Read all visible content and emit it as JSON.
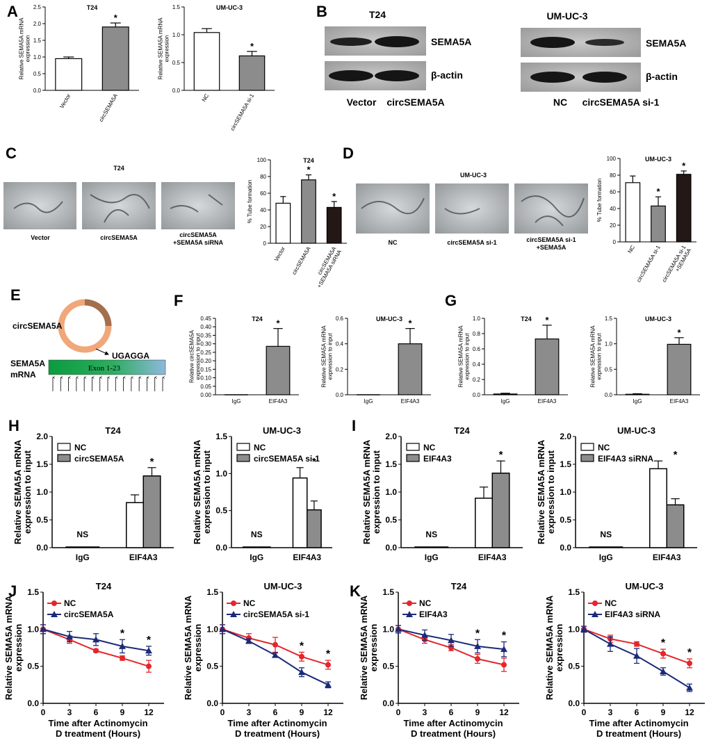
{
  "panels": [
    "A",
    "B",
    "C",
    "D",
    "E",
    "F",
    "G",
    "H",
    "I",
    "J",
    "K"
  ],
  "colors": {
    "gray": "#8c8c8c",
    "black": "#231815",
    "white": "#ffffff",
    "red": "#e4262b",
    "blue": "#1b2a78",
    "green_start": "#0b9b3f",
    "green_end": "#8fb8dd"
  },
  "blots": {
    "T24": {
      "title": "T24",
      "band1": "SEMA5A",
      "band2": "β-actin",
      "lanes": [
        "Vector",
        "circSEMA5A"
      ]
    },
    "UMUC3": {
      "title": "UM-UC-3",
      "band1": "SEMA5A",
      "band2": "β-actin",
      "lanes": [
        "NC",
        "circSEMA5A si-1"
      ]
    }
  },
  "micro_C": {
    "title": "T24",
    "labels": [
      "Vector",
      "circSEMA5A",
      "circSEMA5A\n+SEMA5A siRNA"
    ]
  },
  "micro_D": {
    "title": "UM-UC-3",
    "labels": [
      "NC",
      "circSEMA5A si-1",
      "circSEMA5A si-1\n+SEMA5A"
    ]
  },
  "schematic": {
    "circ_label": "circSEMA5A",
    "motif": "UGAGGA",
    "mrna_label": "SEMA5A\nmRNA",
    "exon_label": "Exon 1-23",
    "arrows": 15
  },
  "chart_data": [
    {
      "id": "A1",
      "type": "bar",
      "title": "T24",
      "ylabel": "Relative SEMA5A mRNA\nexpression",
      "categories": [
        "Vector",
        "circSEMA5A"
      ],
      "values": [
        0.95,
        1.9
      ],
      "errors": [
        0.05,
        0.12
      ],
      "fills": [
        "white",
        "gray"
      ],
      "ylim": [
        0,
        2.5
      ],
      "yticks": [
        0,
        0.5,
        1.0,
        1.5,
        2.0,
        2.5
      ],
      "tick_labels": [
        "0.0",
        "0.5",
        "1.0",
        "1.5",
        "2.0",
        "2.5"
      ],
      "stars": [
        "",
        "*"
      ],
      "rotate": true
    },
    {
      "id": "A2",
      "type": "bar",
      "title": "UM-UC-3",
      "ylabel": "Relative SEMA5A mRNA\nexpression",
      "categories": [
        "NC",
        "circSEMA5A si-1"
      ],
      "values": [
        1.04,
        0.62
      ],
      "errors": [
        0.07,
        0.08
      ],
      "fills": [
        "white",
        "gray"
      ],
      "ylim": [
        0,
        1.5
      ],
      "yticks": [
        0,
        0.5,
        1.0,
        1.5
      ],
      "tick_labels": [
        "0.0",
        "0.5",
        "1.0",
        "1.5"
      ],
      "stars": [
        "",
        "*"
      ],
      "rotate": true
    },
    {
      "id": "C",
      "type": "bar",
      "title": "T24",
      "ylabel": "% Tube formation",
      "categories": [
        "Vector",
        "circSEMA5A",
        "circSEMA5A\n+SEMA5A siRNA"
      ],
      "values": [
        48,
        76,
        43
      ],
      "errors": [
        8,
        6,
        7
      ],
      "fills": [
        "white",
        "gray",
        "black"
      ],
      "ylim": [
        0,
        100
      ],
      "yticks": [
        0,
        20,
        40,
        60,
        80,
        100
      ],
      "tick_labels": [
        "0",
        "20",
        "40",
        "60",
        "80",
        "100"
      ],
      "stars": [
        "",
        "*",
        "*"
      ],
      "rotate": true
    },
    {
      "id": "D",
      "type": "bar",
      "title": "UM-UC-3",
      "ylabel": "% Tube formation",
      "categories": [
        "NC",
        "circSEMA5A si-1",
        "circSEMA5A si-1\n+SEMA5A"
      ],
      "values": [
        71,
        43,
        81
      ],
      "errors": [
        8,
        11,
        4
      ],
      "fills": [
        "white",
        "gray",
        "black"
      ],
      "ylim": [
        0,
        100
      ],
      "yticks": [
        0,
        20,
        40,
        60,
        80,
        100
      ],
      "tick_labels": [
        "0",
        "20",
        "40",
        "60",
        "80",
        "100"
      ],
      "stars": [
        "",
        "*",
        "*"
      ],
      "rotate": true
    },
    {
      "id": "F1",
      "type": "bar",
      "title": "T24",
      "ylabel": "Relative circSEMA5A\nexpression to input",
      "categories": [
        "IgG",
        "EIF4A3"
      ],
      "values": [
        0,
        0.285
      ],
      "errors": [
        0,
        0.105
      ],
      "fills": [
        "gray",
        "gray"
      ],
      "ylim": [
        0,
        0.45
      ],
      "yticks": [
        0,
        0.05,
        0.1,
        0.15,
        0.2,
        0.25,
        0.3,
        0.35,
        0.4,
        0.45
      ],
      "tick_labels": [
        "0.00",
        "0.05",
        "0.10",
        "0.15",
        "0.20",
        "0.25",
        "0.30",
        "0.35",
        "0.40",
        "0.45"
      ],
      "stars": [
        "",
        "*"
      ],
      "rotate": false
    },
    {
      "id": "F2",
      "type": "bar",
      "title": "UM-UC-3",
      "ylabel": "Relative SEMA5A mRNA\nexpression to input",
      "categories": [
        "IgG",
        "EIF4A3"
      ],
      "values": [
        0,
        0.4
      ],
      "errors": [
        0,
        0.12
      ],
      "fills": [
        "gray",
        "gray"
      ],
      "ylim": [
        0,
        0.6
      ],
      "yticks": [
        0,
        0.2,
        0.4,
        0.6
      ],
      "tick_labels": [
        "0.0",
        "0.2",
        "0.4",
        "0.6"
      ],
      "stars": [
        "",
        "*"
      ],
      "rotate": false
    },
    {
      "id": "G1",
      "type": "bar",
      "title": "T24",
      "ylabel": "Relative SEMA5A mRNA\nexpression to input",
      "categories": [
        "IgG",
        "EIF4A3"
      ],
      "values": [
        0.01,
        0.73
      ],
      "errors": [
        0.01,
        0.18
      ],
      "fills": [
        "gray",
        "gray"
      ],
      "ylim": [
        0,
        1.0
      ],
      "yticks": [
        0,
        0.2,
        0.4,
        0.6,
        0.8,
        1.0
      ],
      "tick_labels": [
        "0.0",
        "0.2",
        "0.4",
        "0.6",
        "0.8",
        "1.0"
      ],
      "stars": [
        "",
        "*"
      ],
      "rotate": false
    },
    {
      "id": "G2",
      "type": "bar",
      "title": "UM-UC-3",
      "ylabel": "Relative SEMA5A mRNA\nexpression to input",
      "categories": [
        "IgG",
        "EIF4A3"
      ],
      "values": [
        0.01,
        0.99
      ],
      "errors": [
        0.01,
        0.13
      ],
      "fills": [
        "gray",
        "gray"
      ],
      "ylim": [
        0,
        1.5
      ],
      "yticks": [
        0,
        0.5,
        1.0,
        1.5
      ],
      "tick_labels": [
        "0.0",
        "0.5",
        "1.0",
        "1.5"
      ],
      "stars": [
        "",
        "*"
      ],
      "rotate": false
    },
    {
      "id": "H1",
      "type": "grouped_bar",
      "title": "T24",
      "ylabel": "Relative SEMA5A mRNA\nexpression to input",
      "categories": [
        "IgG",
        "EIF4A3"
      ],
      "series": [
        {
          "name": "NC",
          "fill": "white",
          "values": [
            0.01,
            0.81
          ],
          "errors": [
            0,
            0.14
          ]
        },
        {
          "name": "circSEMA5A",
          "fill": "gray",
          "values": [
            0.01,
            1.29
          ],
          "errors": [
            0,
            0.15
          ]
        }
      ],
      "ylim": [
        0,
        2.0
      ],
      "yticks": [
        0,
        0.5,
        1.0,
        1.5,
        2.0
      ],
      "tick_labels": [
        "0.0",
        "0.5",
        "1.0",
        "1.5",
        "2.0"
      ],
      "annot": [
        "NS",
        "*"
      ]
    },
    {
      "id": "H2",
      "type": "grouped_bar",
      "title": "UM-UC-3",
      "ylabel": "Relative SEMA5A mRNA\nexpression to input",
      "categories": [
        "IgG",
        "EIF4A3"
      ],
      "series": [
        {
          "name": "NC",
          "fill": "white",
          "values": [
            0.01,
            0.94
          ],
          "errors": [
            0,
            0.14
          ]
        },
        {
          "name": "circSEMA5A si-1",
          "fill": "gray",
          "values": [
            0.01,
            0.51
          ],
          "errors": [
            0,
            0.12
          ]
        }
      ],
      "ylim": [
        0,
        1.5
      ],
      "yticks": [
        0,
        0.5,
        1.0,
        1.5
      ],
      "tick_labels": [
        "0.0",
        "0.5",
        "1.0",
        "1.5"
      ],
      "annot": [
        "NS",
        "*"
      ]
    },
    {
      "id": "I1",
      "type": "grouped_bar",
      "title": "T24",
      "ylabel": "Relative SEMA5A mRNA\nexpression to input",
      "categories": [
        "IgG",
        "EIF4A3"
      ],
      "series": [
        {
          "name": "NC",
          "fill": "white",
          "values": [
            0.01,
            0.89
          ],
          "errors": [
            0,
            0.2
          ]
        },
        {
          "name": "EIF4A3",
          "fill": "gray",
          "values": [
            0.01,
            1.34
          ],
          "errors": [
            0,
            0.22
          ]
        }
      ],
      "ylim": [
        0,
        2.0
      ],
      "yticks": [
        0,
        0.5,
        1.0,
        1.5,
        2.0
      ],
      "tick_labels": [
        "0.0",
        "0.5",
        "1.0",
        "1.5",
        "2.0"
      ],
      "annot": [
        "NS",
        "*"
      ]
    },
    {
      "id": "I2",
      "type": "grouped_bar",
      "title": "UM-UC-3",
      "ylabel": "Relative SEMA5A mRNA\nexpression to input",
      "categories": [
        "IgG",
        "EIF4A3"
      ],
      "series": [
        {
          "name": "NC",
          "fill": "white",
          "values": [
            0.01,
            1.42
          ],
          "errors": [
            0,
            0.14
          ]
        },
        {
          "name": "EIF4A3 siRNA",
          "fill": "gray",
          "values": [
            0.01,
            0.77
          ],
          "errors": [
            0,
            0.11
          ]
        }
      ],
      "ylim": [
        0,
        2.0
      ],
      "yticks": [
        0,
        0.5,
        1.0,
        1.5,
        2.0
      ],
      "tick_labels": [
        "0.0",
        "0.5",
        "1.0",
        "1.5",
        "2.0"
      ],
      "annot": [
        "NS",
        "*"
      ]
    },
    {
      "id": "J1",
      "type": "line",
      "title": "T24",
      "ylabel": "Relative SEMA5A mRNA\nexpression",
      "xlabel": "Time after Actinomycin\nD treatment (Hours)",
      "x": [
        0,
        3,
        6,
        9,
        12
      ],
      "series": [
        {
          "name": "NC",
          "color": "red",
          "marker": "circle",
          "values": [
            1.0,
            0.86,
            0.71,
            0.61,
            0.5
          ],
          "errors": [
            0.06,
            0.05,
            0.02,
            0.03,
            0.08
          ]
        },
        {
          "name": "circSEMA5A",
          "color": "blue",
          "marker": "triangle",
          "values": [
            1.0,
            0.9,
            0.86,
            0.77,
            0.71
          ],
          "errors": [
            0.06,
            0.07,
            0.08,
            0.09,
            0.06
          ]
        }
      ],
      "ylim": [
        0,
        1.5
      ],
      "yticks": [
        0,
        0.5,
        1.0,
        1.5
      ],
      "tick_labels": [
        "0.0",
        "0.5",
        "1.0",
        "1.5"
      ],
      "star_x": [
        9,
        12
      ]
    },
    {
      "id": "J2",
      "type": "line",
      "title": "UM-UC-3",
      "ylabel": "Relative SEMA5A mRNA\nexpression",
      "xlabel": "Time after Actinomycin\nD treatment (Hours)",
      "x": [
        0,
        3,
        6,
        9,
        12
      ],
      "series": [
        {
          "name": "NC",
          "color": "red",
          "marker": "circle",
          "values": [
            1.0,
            0.88,
            0.79,
            0.63,
            0.52
          ],
          "errors": [
            0.06,
            0.06,
            0.1,
            0.06,
            0.06
          ]
        },
        {
          "name": "circSEMA5A si-1",
          "color": "blue",
          "marker": "triangle",
          "values": [
            1.0,
            0.84,
            0.65,
            0.42,
            0.25
          ],
          "errors": [
            0.06,
            0.03,
            0.03,
            0.06,
            0.04
          ]
        }
      ],
      "ylim": [
        0,
        1.5
      ],
      "yticks": [
        0,
        0.5,
        1.0,
        1.5
      ],
      "tick_labels": [
        "0.0",
        "0.5",
        "1.0",
        "1.5"
      ],
      "star_x": [
        9,
        12
      ]
    },
    {
      "id": "K1",
      "type": "line",
      "title": "T24",
      "ylabel": "Relative SEMA5A mRNA\nexpression",
      "xlabel": "Time after Actinomycin\nD treatment (Hours)",
      "x": [
        0,
        3,
        6,
        9,
        12
      ],
      "series": [
        {
          "name": "NC",
          "color": "red",
          "marker": "circle",
          "values": [
            1.0,
            0.86,
            0.75,
            0.6,
            0.52
          ],
          "errors": [
            0.05,
            0.05,
            0.04,
            0.06,
            0.09
          ]
        },
        {
          "name": "EIF4A3",
          "color": "blue",
          "marker": "triangle",
          "values": [
            1.0,
            0.92,
            0.85,
            0.77,
            0.73
          ],
          "errors": [
            0.05,
            0.07,
            0.08,
            0.09,
            0.1
          ]
        }
      ],
      "ylim": [
        0,
        1.5
      ],
      "yticks": [
        0,
        0.5,
        1.0,
        1.5
      ],
      "tick_labels": [
        "0.0",
        "0.5",
        "1.0",
        "1.5"
      ],
      "star_x": [
        9,
        12
      ]
    },
    {
      "id": "K2",
      "type": "line",
      "title": "UM-UC-3",
      "ylabel": "Relative SEMA5A mRNA\nexpression",
      "xlabel": "Time after Actinomycin\nD treatment (Hours)",
      "x": [
        0,
        3,
        6,
        9,
        12
      ],
      "series": [
        {
          "name": "NC",
          "color": "red",
          "marker": "circle",
          "values": [
            1.0,
            0.87,
            0.8,
            0.67,
            0.54
          ],
          "errors": [
            0.04,
            0.05,
            0.03,
            0.06,
            0.06
          ]
        },
        {
          "name": "EIF4A3 siRNA",
          "color": "blue",
          "marker": "triangle",
          "values": [
            1.0,
            0.8,
            0.64,
            0.43,
            0.21
          ],
          "errors": [
            0.04,
            0.1,
            0.1,
            0.05,
            0.05
          ]
        }
      ],
      "ylim": [
        0,
        1.5
      ],
      "yticks": [
        0,
        0.5,
        1.0,
        1.5
      ],
      "tick_labels": [
        "0.0",
        "0.5",
        "1.0",
        "1.5"
      ],
      "star_x": [
        9,
        12
      ]
    }
  ]
}
